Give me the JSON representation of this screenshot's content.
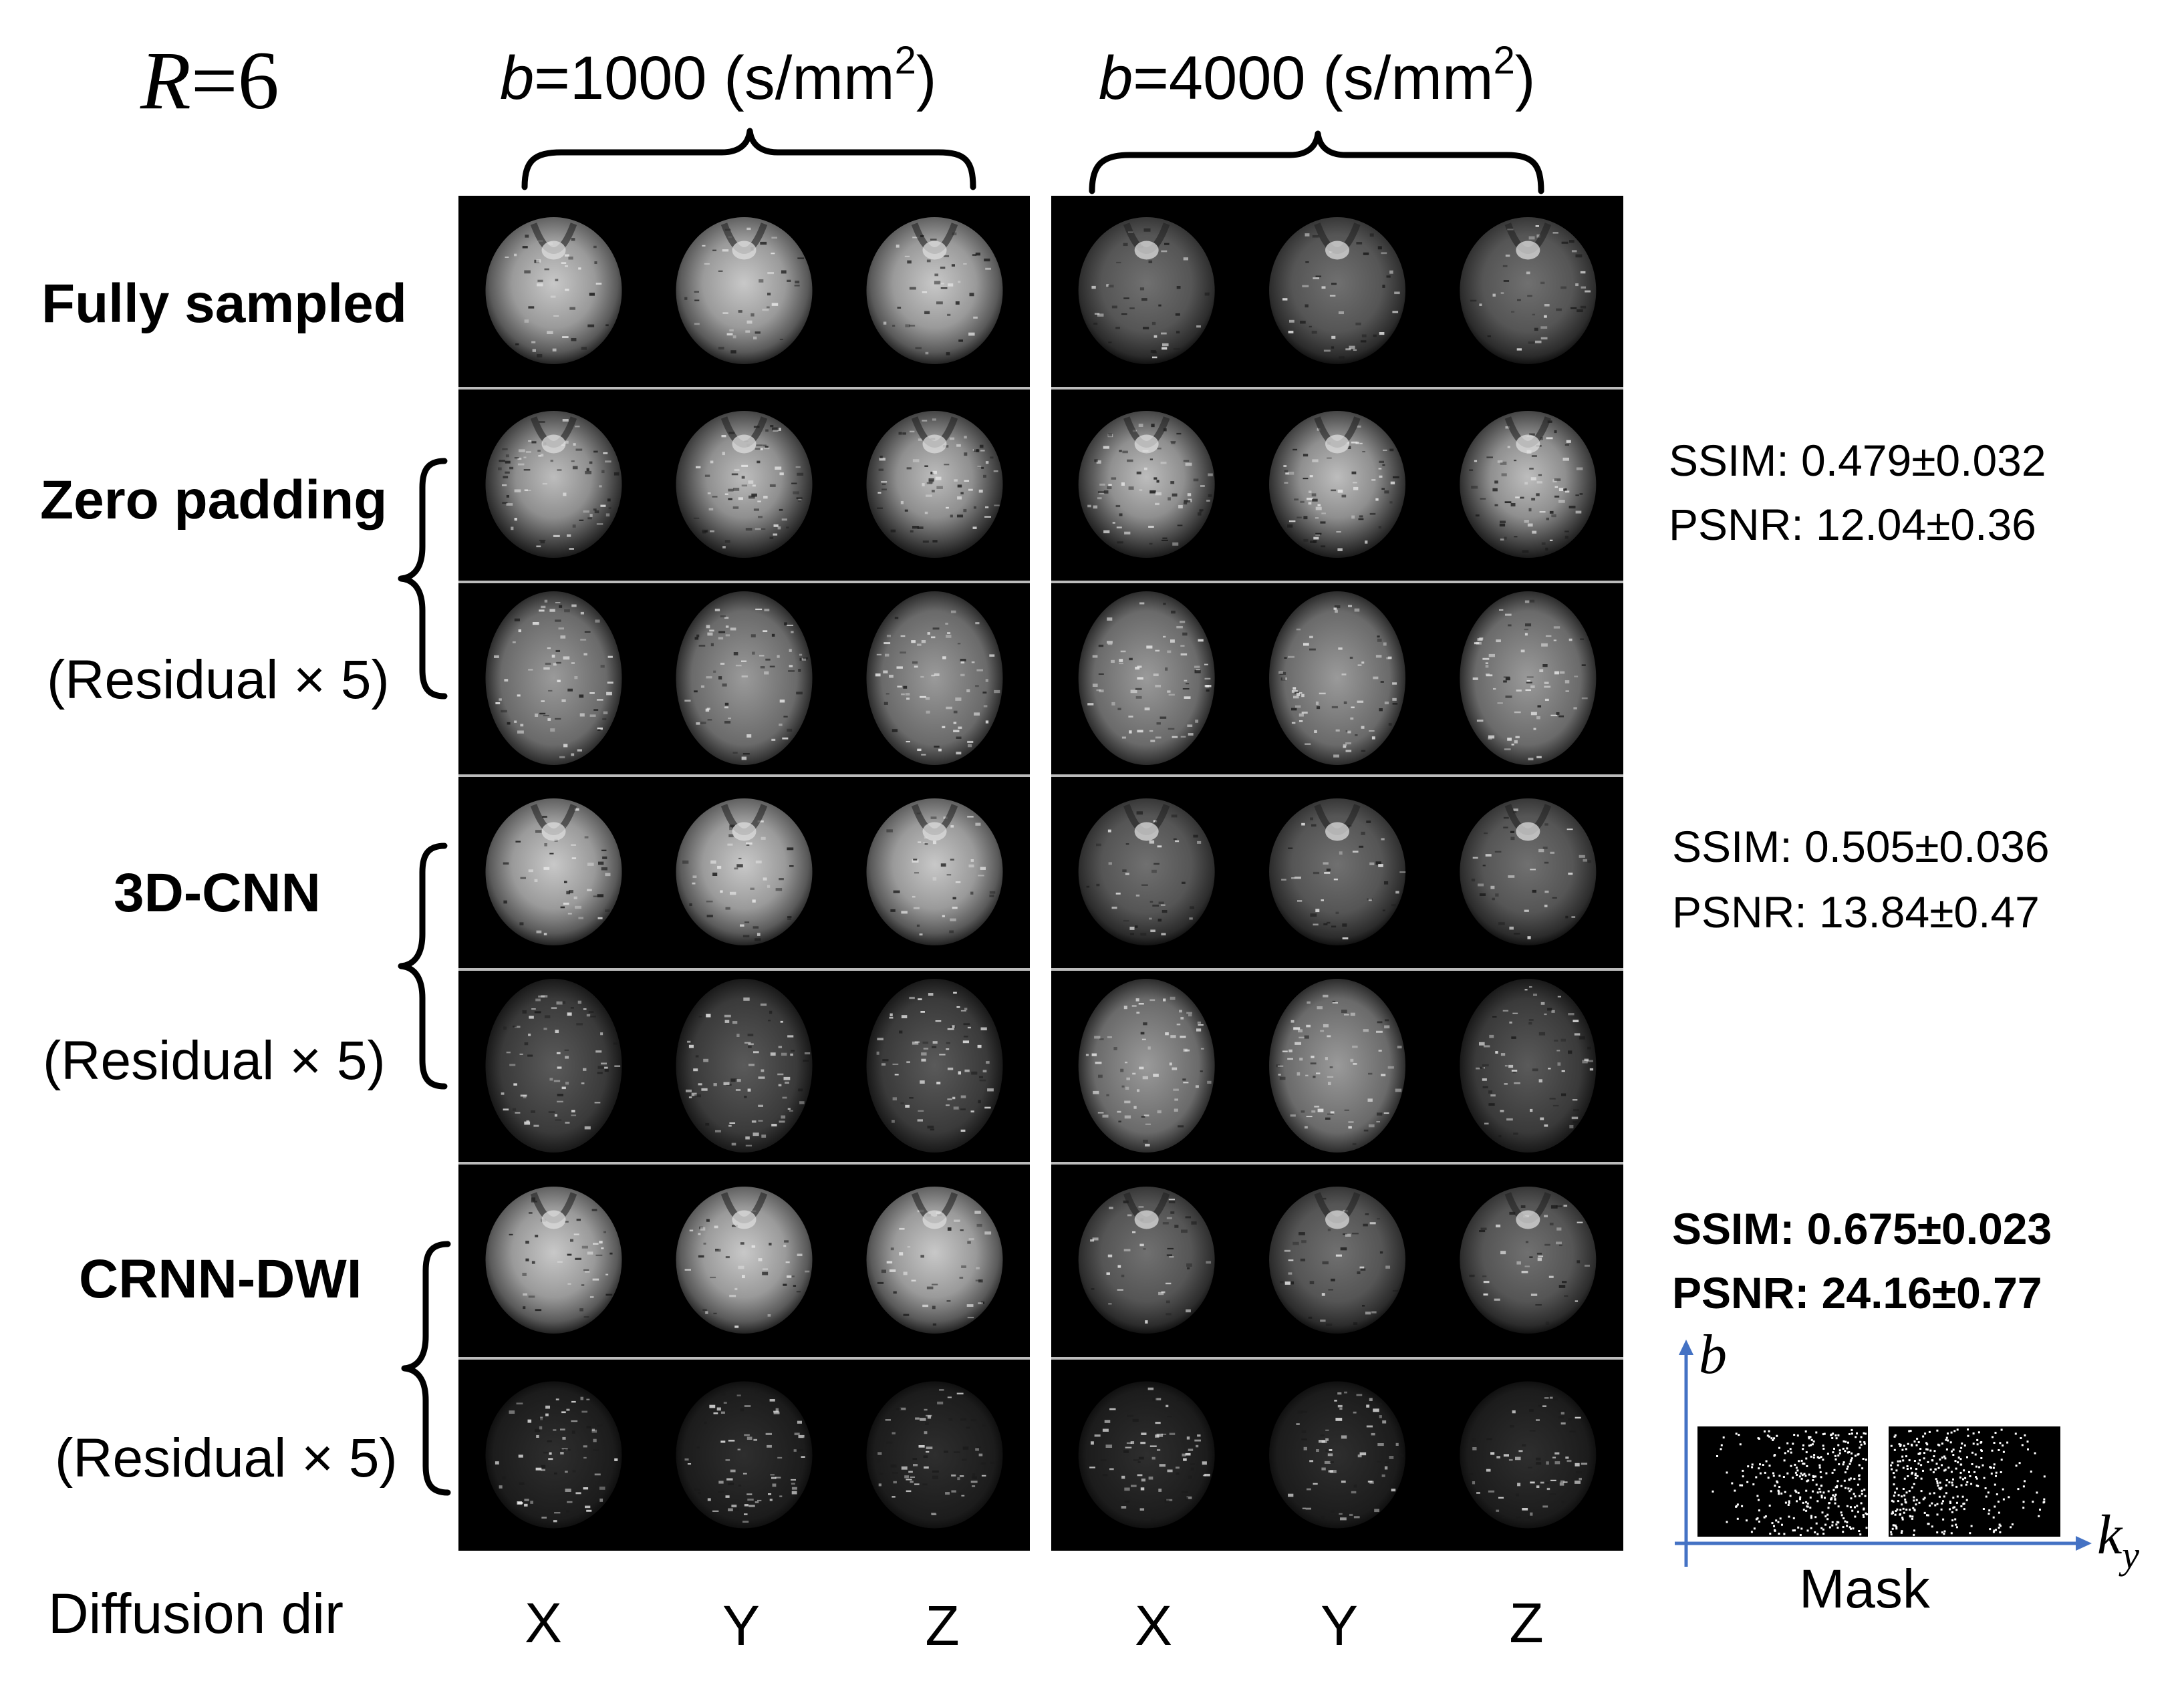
{
  "accel_label": {
    "var": "R",
    "value": "=6"
  },
  "b_headers": [
    {
      "var": "b",
      "text": "=1000 (s/mm",
      "sup": "2",
      "close": ")"
    },
    {
      "var": "b",
      "text": "=4000 (s/mm",
      "sup": "2",
      "close": ")"
    }
  ],
  "rows": {
    "fully_sampled": "Fully sampled",
    "zero_padding": "Zero padding",
    "zero_padding_residual": "(Residual × 5)",
    "cnn3d": "3D-CNN",
    "cnn3d_residual": "(Residual × 5)",
    "crnn": "CRNN-DWI",
    "crnn_residual": "(Residual × 5)"
  },
  "metrics": [
    {
      "ssim": "SSIM: 0.479±0.032",
      "psnr": "PSNR: 12.04±0.36"
    },
    {
      "ssim": "SSIM: 0.505±0.036",
      "psnr": "PSNR: 13.84±0.47"
    },
    {
      "ssim": "SSIM: 0.675±0.023",
      "psnr": "PSNR: 24.16±0.77"
    }
  ],
  "diffusion_dir_label": "Diffusion dir",
  "directions": [
    "X",
    "Y",
    "Z",
    "X",
    "Y",
    "Z"
  ],
  "mask": {
    "label": "Mask",
    "axis_b": "b",
    "axis_k": "k",
    "axis_k_sub": "y"
  },
  "colors": {
    "crnn_label": "#ff0000",
    "axis": "#4472c4",
    "panel_bg": "#000000"
  }
}
